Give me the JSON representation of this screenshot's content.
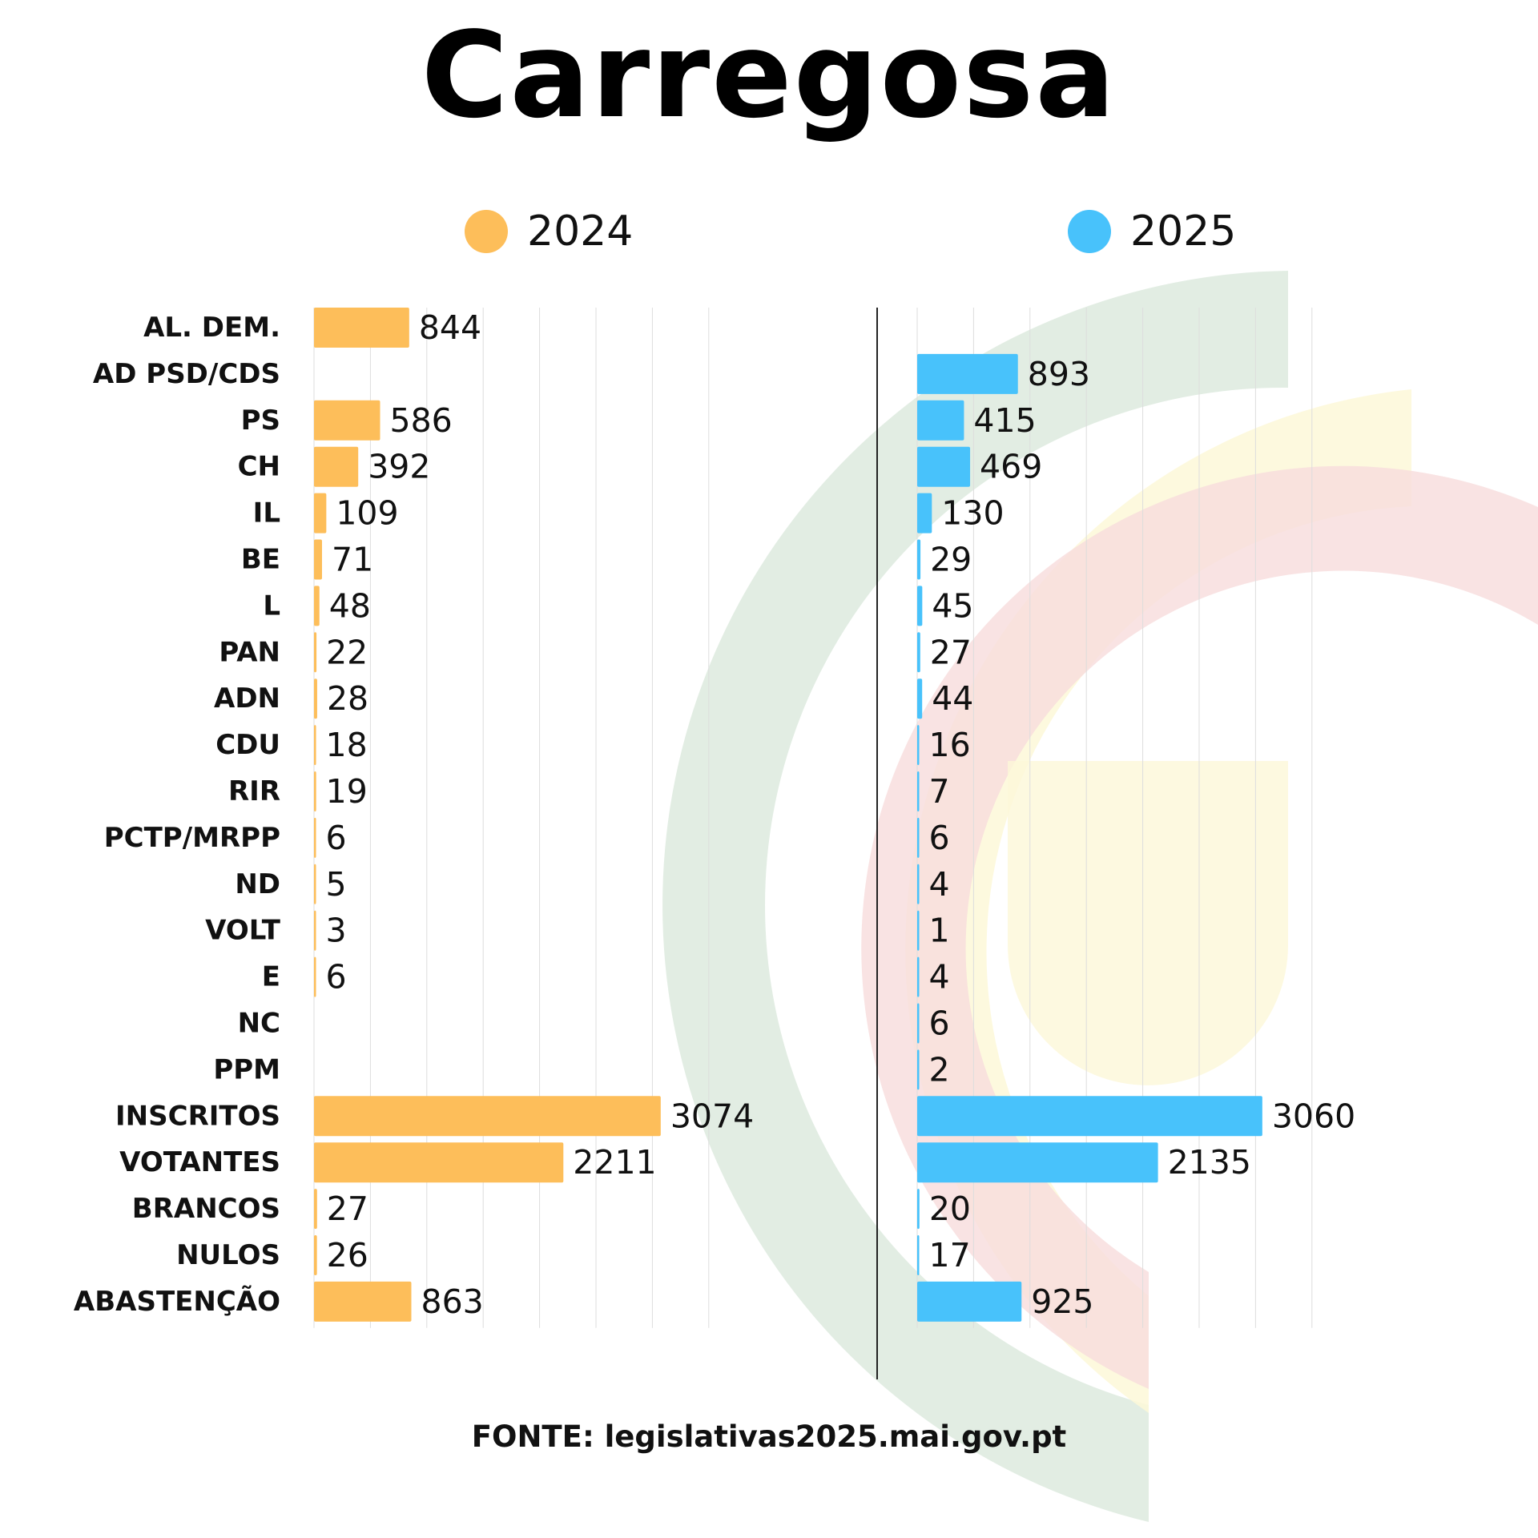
{
  "chart_data": {
    "type": "bar",
    "title": "Carregosa",
    "categories": [
      "AL. DEM.",
      "AD PSD/CDS",
      "PS",
      "CH",
      "IL",
      "BE",
      "L",
      "PAN",
      "ADN",
      "CDU",
      "RIR",
      "PCTP/MRPP",
      "ND",
      "VOLT",
      "E",
      "NC",
      "PPM",
      "INSCRITOS",
      "VOTANTES",
      "BRANCOS",
      "NULOS",
      "ABASTENÇÃO"
    ],
    "series": [
      {
        "name": "2024",
        "color": "#FDBE5A",
        "values": [
          844,
          null,
          586,
          392,
          109,
          71,
          48,
          22,
          28,
          18,
          19,
          6,
          5,
          3,
          6,
          null,
          null,
          3074,
          2211,
          27,
          26,
          863
        ]
      },
      {
        "name": "2025",
        "color": "#48C2FB",
        "values": [
          null,
          893,
          415,
          469,
          130,
          29,
          45,
          27,
          44,
          16,
          7,
          6,
          4,
          1,
          4,
          6,
          2,
          3060,
          2135,
          20,
          17,
          925
        ]
      }
    ],
    "xlim": [
      0,
      3500
    ],
    "grid": true,
    "legend": "top",
    "source": "FONTE: legislativas2025.mai.gov.pt"
  }
}
